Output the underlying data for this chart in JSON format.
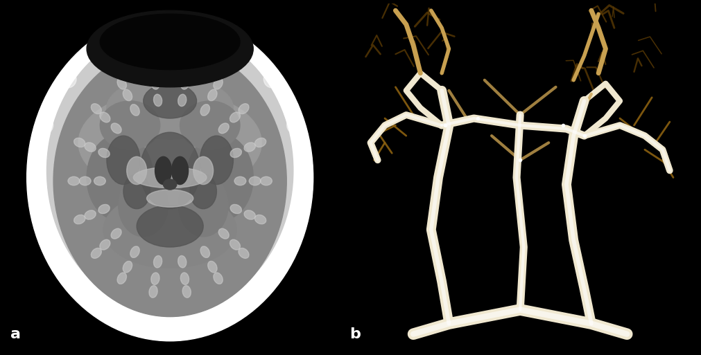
{
  "figure_width": 10.11,
  "figure_height": 5.13,
  "dpi": 100,
  "bg_color": "#000000",
  "label_a": "a",
  "label_b": "b",
  "label_color": "#ffffff",
  "label_fontsize": 16,
  "label_fontweight": "bold"
}
